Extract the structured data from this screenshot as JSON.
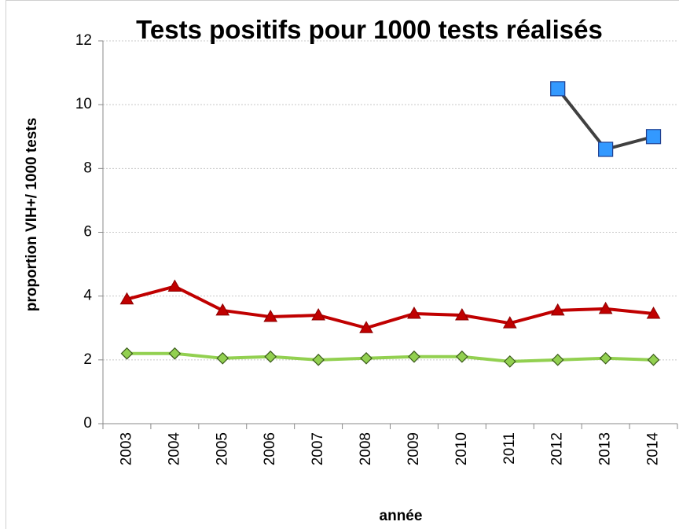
{
  "chart_data": {
    "type": "line",
    "title": "Tests positifs pour 1000 tests réalisés",
    "x_label": "année",
    "y_label": "proportion VIH+/ 1000 tests",
    "categories": [
      "2003",
      "2004",
      "2005",
      "2006",
      "2007",
      "2008",
      "2009",
      "2010",
      "2011",
      "2012",
      "2013",
      "2014"
    ],
    "series": [
      {
        "color": "#c00000",
        "marker": "triangle",
        "marker_color": "#c00000",
        "values": [
          3.9,
          4.3,
          3.55,
          3.35,
          3.4,
          3.0,
          3.45,
          3.4,
          3.15,
          3.55,
          3.6,
          3.45
        ]
      },
      {
        "color": "#92d050",
        "marker": "diamond",
        "marker_color": "#92d050",
        "values": [
          2.2,
          2.2,
          2.05,
          2.1,
          2.0,
          2.05,
          2.1,
          2.1,
          1.95,
          2.0,
          2.05,
          2.0
        ]
      },
      {
        "color": "#404040",
        "marker": "square",
        "marker_color": "#3399ff",
        "values": [
          null,
          null,
          null,
          null,
          null,
          null,
          null,
          null,
          null,
          10.5,
          8.6,
          9.0
        ]
      }
    ],
    "ylim": [
      0,
      12
    ],
    "yticks": [
      0,
      2,
      4,
      6,
      8,
      10,
      12
    ],
    "grid": true
  }
}
